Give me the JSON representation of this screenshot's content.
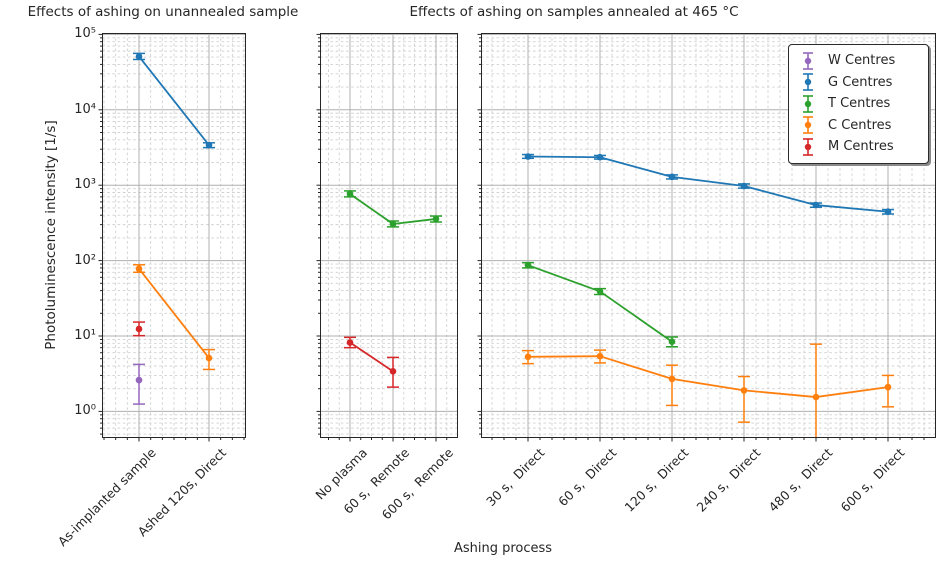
{
  "figure": {
    "title_left": "Effects of ashing on unannealed sample",
    "title_right": "Effects of ashing on samples annealed at 465 °C",
    "xlabel": "Ashing process",
    "ylabel": "Photoluminescence intensity [1/s]"
  },
  "axis": {
    "yscale": "log",
    "ylim": [
      0.44,
      105000
    ],
    "ytick_values": [
      1,
      10,
      100,
      1000,
      10000,
      100000
    ],
    "ytick_labels": [
      "10⁰",
      "10¹",
      "10²",
      "10³",
      "10⁴",
      "10⁵"
    ],
    "grid": "major solid gray, minor dashed light gray"
  },
  "legend": {
    "position": "top-right",
    "items": [
      {
        "label": "W Centres",
        "color": "#9467bd"
      },
      {
        "label": "G Centres",
        "color": "#1f77b4"
      },
      {
        "label": "T Centres",
        "color": "#2ca02c"
      },
      {
        "label": "C Centres",
        "color": "#ff7f0e"
      },
      {
        "label": "M Centres",
        "color": "#d62728"
      }
    ]
  },
  "chart_data": [
    {
      "name": "unannealed-sample-panel",
      "type": "line",
      "yscale": "log",
      "categories": [
        "As-implanted sample",
        "Ashed 120s, Direct"
      ],
      "series": [
        {
          "name": "W Centres",
          "color": "#9467bd",
          "values": [
            2.6,
            null
          ],
          "err_lo": [
            1.25,
            null
          ],
          "err_hi": [
            4.2,
            null
          ]
        },
        {
          "name": "G Centres",
          "color": "#1f77b4",
          "values": [
            51000,
            3400
          ],
          "err_lo": [
            46500,
            3150
          ],
          "err_hi": [
            56000,
            3650
          ]
        },
        {
          "name": "C Centres",
          "color": "#ff7f0e",
          "values": [
            78,
            5.1
          ],
          "err_lo": [
            70,
            3.6
          ],
          "err_hi": [
            88,
            6.6
          ]
        },
        {
          "name": "M Centres",
          "color": "#d62728",
          "values": [
            12.4,
            null
          ],
          "err_lo": [
            10.1,
            null
          ],
          "err_hi": [
            15.3,
            null
          ]
        }
      ]
    },
    {
      "name": "annealed-465C-remote-panel",
      "type": "line",
      "yscale": "log",
      "categories": [
        "No plasma",
        "60 s,  Remote",
        "600 s,  Remote"
      ],
      "series": [
        {
          "name": "T Centres",
          "color": "#2ca02c",
          "values": [
            765,
            306,
            357
          ],
          "err_lo": [
            700,
            280,
            325
          ],
          "err_hi": [
            840,
            335,
            390
          ]
        },
        {
          "name": "M Centres",
          "color": "#d62728",
          "values": [
            8.2,
            3.4,
            null
          ],
          "err_lo": [
            7.0,
            2.1,
            null
          ],
          "err_hi": [
            9.6,
            5.2,
            null
          ]
        }
      ]
    },
    {
      "name": "annealed-465C-direct-panel",
      "type": "line",
      "yscale": "log",
      "categories": [
        "30 s,  Direct",
        "60 s,  Direct",
        "120 s,  Direct",
        "240 s,  Direct",
        "480 s,  Direct",
        "600 s,  Direct"
      ],
      "series": [
        {
          "name": "G Centres",
          "color": "#1f77b4",
          "values": [
            2400,
            2350,
            1290,
            975,
            545,
            445
          ],
          "err_lo": [
            2270,
            2220,
            1210,
            915,
            510,
            415
          ],
          "err_hi": [
            2550,
            2480,
            1370,
            1040,
            580,
            475
          ]
        },
        {
          "name": "T Centres",
          "color": "#2ca02c",
          "values": [
            87,
            39,
            8.4,
            null,
            null,
            null
          ],
          "err_lo": [
            80,
            35.5,
            7.2,
            null,
            null,
            null
          ],
          "err_hi": [
            94,
            42.5,
            9.7,
            null,
            null,
            null
          ]
        },
        {
          "name": "C Centres",
          "color": "#ff7f0e",
          "values": [
            5.3,
            5.4,
            2.7,
            1.9,
            1.55,
            2.1
          ],
          "err_lo": [
            4.3,
            4.4,
            1.2,
            0.72,
            0.2,
            1.15
          ],
          "err_hi": [
            6.4,
            6.5,
            4.1,
            2.9,
            7.8,
            3.0
          ]
        }
      ]
    }
  ]
}
